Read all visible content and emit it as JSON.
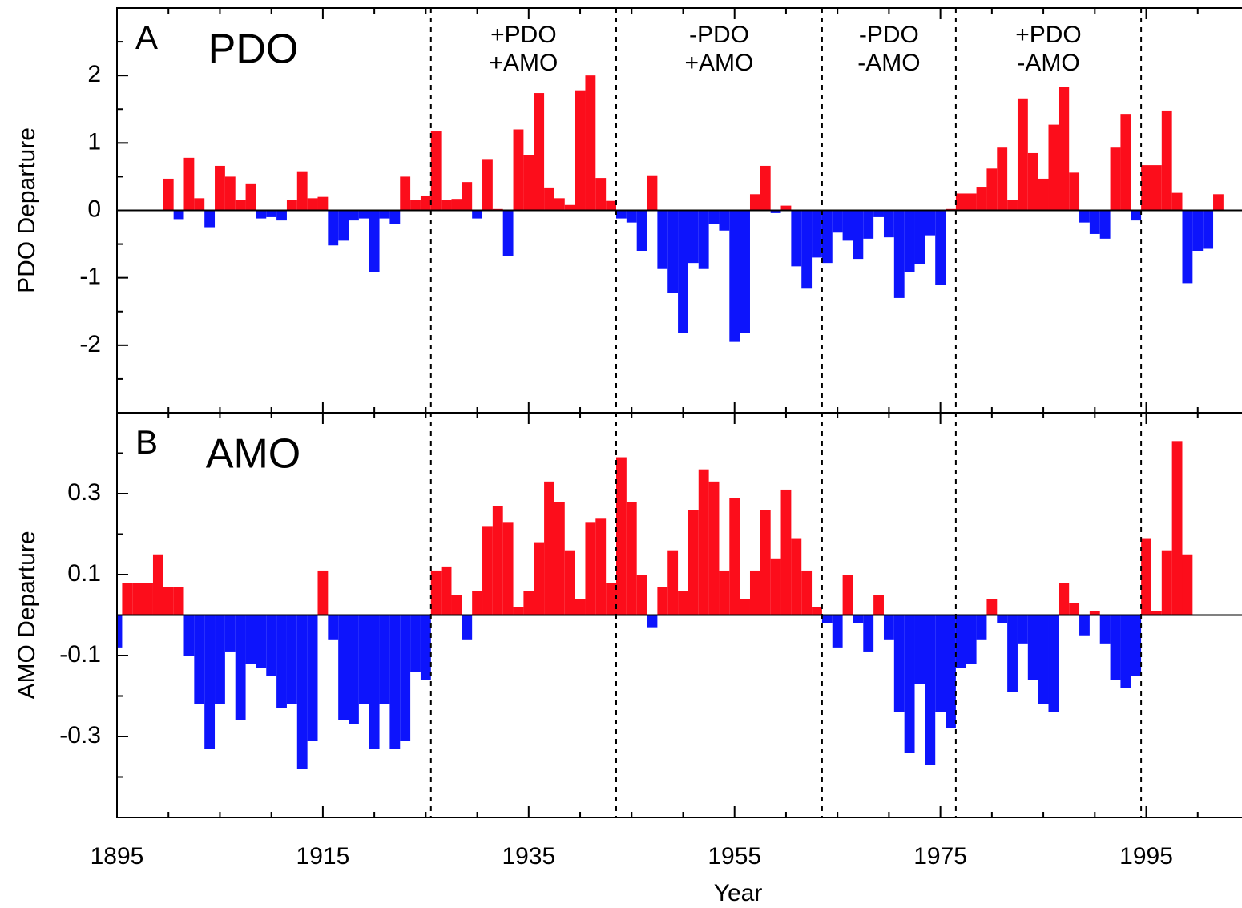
{
  "chart_data": [
    {
      "type": "bar",
      "panel_label": "A",
      "title": "PDO",
      "ylabel": "PDO Departure",
      "x": [
        1900,
        1901,
        1902,
        1903,
        1904,
        1905,
        1906,
        1907,
        1908,
        1909,
        1910,
        1911,
        1912,
        1913,
        1914,
        1915,
        1916,
        1917,
        1918,
        1919,
        1920,
        1921,
        1922,
        1923,
        1924,
        1925,
        1926,
        1927,
        1928,
        1929,
        1930,
        1931,
        1932,
        1933,
        1934,
        1935,
        1936,
        1937,
        1938,
        1939,
        1940,
        1941,
        1942,
        1943,
        1944,
        1945,
        1946,
        1947,
        1948,
        1949,
        1950,
        1951,
        1952,
        1953,
        1954,
        1955,
        1956,
        1957,
        1958,
        1959,
        1960,
        1961,
        1962,
        1963,
        1964,
        1965,
        1966,
        1967,
        1968,
        1969,
        1970,
        1971,
        1972,
        1973,
        1974,
        1975,
        1976,
        1977,
        1978,
        1979,
        1980,
        1981,
        1982,
        1983,
        1984,
        1985,
        1986,
        1987,
        1988,
        1989,
        1990,
        1991,
        1992,
        1993,
        1994,
        1995,
        1996,
        1997,
        1998,
        1999,
        2000,
        2001,
        2002
      ],
      "values": [
        0.47,
        -0.13,
        0.78,
        0.18,
        -0.25,
        0.66,
        0.5,
        0.15,
        0.4,
        -0.12,
        -0.1,
        -0.15,
        0.15,
        0.58,
        0.18,
        0.2,
        -0.52,
        -0.45,
        -0.15,
        -0.12,
        -0.92,
        -0.12,
        -0.2,
        0.5,
        0.15,
        0.22,
        1.17,
        0.15,
        0.17,
        0.42,
        -0.12,
        0.75,
        0.02,
        -0.68,
        1.2,
        0.82,
        1.74,
        0.34,
        0.18,
        0.08,
        1.78,
        2.0,
        0.48,
        0.14,
        -0.12,
        -0.18,
        -0.6,
        0.52,
        -0.87,
        -1.22,
        -1.82,
        -0.78,
        -0.87,
        -0.2,
        -0.3,
        -1.95,
        -1.82,
        0.24,
        0.66,
        -0.04,
        0.07,
        -0.83,
        -1.15,
        -0.7,
        -0.78,
        -0.33,
        -0.45,
        -0.72,
        -0.42,
        -0.1,
        -0.4,
        -1.3,
        -0.92,
        -0.8,
        -0.37,
        -1.1,
        0.02,
        0.25,
        0.25,
        0.35,
        0.62,
        0.93,
        0.15,
        1.66,
        0.85,
        0.47,
        1.27,
        1.83,
        0.56,
        -0.18,
        -0.35,
        -0.42,
        0.93,
        1.43,
        -0.15,
        0.67,
        0.67,
        1.48,
        0.26,
        -1.08,
        -0.6,
        -0.57,
        0.24
      ],
      "positive_color": "#fc0d1b",
      "negative_color": "#0d14fc",
      "xlim": [
        1895,
        2004.3
      ],
      "xticks": [
        1895,
        1915,
        1935,
        1955,
        1975,
        1995
      ],
      "xticks_minor": [
        1900,
        1905,
        1910,
        1920,
        1925,
        1930,
        1940,
        1945,
        1950,
        1960,
        1965,
        1970,
        1980,
        1985,
        1990,
        2000
      ],
      "ylim": [
        -3,
        3
      ],
      "yticks": [
        -2,
        -1,
        0,
        1,
        2
      ],
      "yticks_minor": [
        -2.5,
        -1.5,
        -0.5,
        0.5,
        1.5,
        2.5
      ],
      "boundaries": [
        1925.5,
        1943.5,
        1963.5,
        1976.5,
        1994.5
      ],
      "regime_labels": [
        [
          "+PDO",
          "+AMO"
        ],
        [
          "-PDO",
          "+AMO"
        ],
        [
          "-PDO",
          "-AMO"
        ],
        [
          "+PDO",
          "-AMO"
        ]
      ]
    },
    {
      "type": "bar",
      "panel_label": "B",
      "title": "AMO",
      "ylabel": "AMO Departure",
      "xlabel": "Year",
      "x": [
        1895,
        1896,
        1897,
        1898,
        1899,
        1900,
        1901,
        1902,
        1903,
        1904,
        1905,
        1906,
        1907,
        1908,
        1909,
        1910,
        1911,
        1912,
        1913,
        1914,
        1915,
        1916,
        1917,
        1918,
        1919,
        1920,
        1921,
        1922,
        1923,
        1924,
        1925,
        1926,
        1927,
        1928,
        1929,
        1930,
        1931,
        1932,
        1933,
        1934,
        1935,
        1936,
        1937,
        1938,
        1939,
        1940,
        1941,
        1942,
        1943,
        1944,
        1945,
        1946,
        1947,
        1948,
        1949,
        1950,
        1951,
        1952,
        1953,
        1954,
        1955,
        1956,
        1957,
        1958,
        1959,
        1960,
        1961,
        1962,
        1963,
        1964,
        1965,
        1966,
        1967,
        1968,
        1969,
        1970,
        1971,
        1972,
        1973,
        1974,
        1975,
        1976,
        1977,
        1978,
        1979,
        1980,
        1981,
        1982,
        1983,
        1984,
        1985,
        1986,
        1987,
        1988,
        1989,
        1990,
        1991,
        1992,
        1993,
        1994,
        1995,
        1996,
        1997,
        1998,
        1999
      ],
      "values": [
        -0.08,
        0.08,
        0.08,
        0.08,
        0.15,
        0.07,
        0.07,
        -0.1,
        -0.22,
        -0.33,
        -0.22,
        -0.09,
        -0.26,
        -0.12,
        -0.13,
        -0.15,
        -0.23,
        -0.22,
        -0.38,
        -0.31,
        0.11,
        -0.06,
        -0.26,
        -0.27,
        -0.22,
        -0.33,
        -0.22,
        -0.33,
        -0.31,
        -0.14,
        -0.16,
        0.11,
        0.12,
        0.05,
        -0.06,
        0.06,
        0.22,
        0.27,
        0.23,
        0.02,
        0.06,
        0.18,
        0.33,
        0.28,
        0.16,
        0.04,
        0.23,
        0.24,
        0.08,
        0.39,
        0.28,
        0.1,
        -0.03,
        0.07,
        0.16,
        0.06,
        0.26,
        0.36,
        0.33,
        0.11,
        0.29,
        0.04,
        0.11,
        0.26,
        0.14,
        0.31,
        0.19,
        0.11,
        0.02,
        -0.02,
        -0.08,
        0.1,
        -0.02,
        -0.09,
        0.05,
        -0.06,
        -0.24,
        -0.34,
        -0.17,
        -0.37,
        -0.24,
        -0.28,
        -0.13,
        -0.12,
        -0.06,
        0.04,
        -0.02,
        -0.19,
        -0.07,
        -0.16,
        -0.22,
        -0.24,
        0.08,
        0.03,
        -0.05,
        0.01,
        -0.07,
        -0.16,
        -0.18,
        -0.15,
        0.19,
        0.01,
        0.16,
        0.43,
        0.15
      ],
      "positive_color": "#fc0d1b",
      "negative_color": "#0d14fc",
      "xlim": [
        1895,
        2004.3
      ],
      "xticks": [
        1895,
        1915,
        1935,
        1955,
        1975,
        1995
      ],
      "xticks_minor": [
        1900,
        1905,
        1910,
        1920,
        1925,
        1930,
        1940,
        1945,
        1950,
        1960,
        1965,
        1970,
        1980,
        1985,
        1990,
        2000
      ],
      "ylim": [
        -0.5,
        0.5
      ],
      "yticks": [
        -0.3,
        -0.1,
        0.1,
        0.3
      ],
      "yticks_minor": [
        -0.4,
        -0.2,
        0,
        0.2,
        0.4
      ]
    }
  ]
}
